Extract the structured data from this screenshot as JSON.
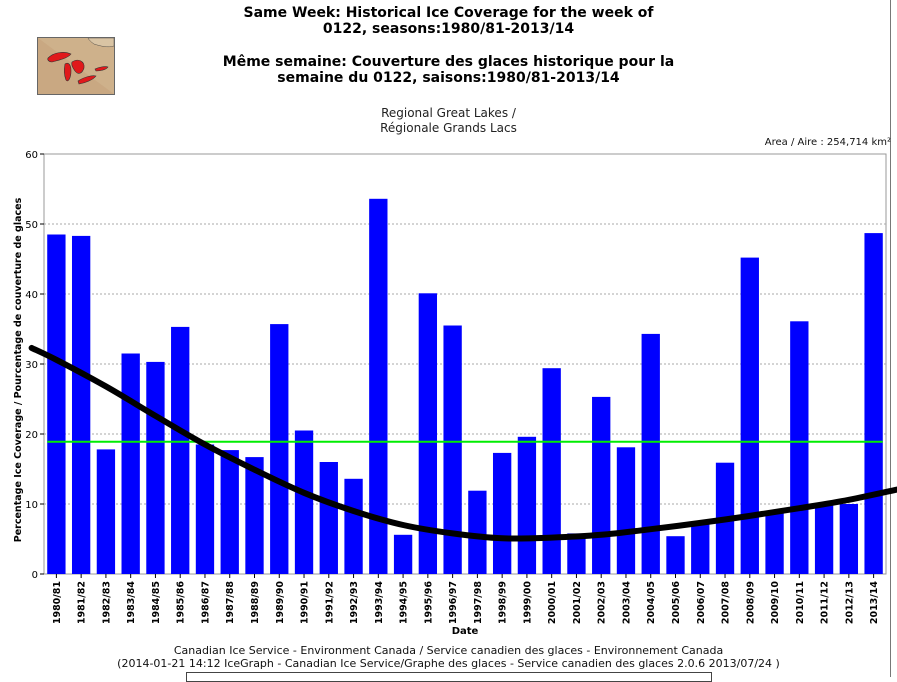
{
  "header": {
    "title_line1": "Same Week: Historical Ice Coverage for the week of",
    "title_line2": "0122, seasons:1980/81-2013/14",
    "title_line3": "Même semaine: Couverture des glaces historique pour la",
    "title_line4": "semaine du 0122, saisons:1980/81-2013/14",
    "region_line1": "Regional Great Lakes /",
    "region_line2": "Régionale Grands Lacs",
    "area": "Area / Aire : 254,714 km²"
  },
  "footer": {
    "line1": "Canadian Ice Service - Environment Canada / Service canadien des glaces - Environnement Canada",
    "line2": "(2014-01-21 14:12 IceGraph - Canadian Ice Service/Graphe des glaces - Service canadien des glaces 2.0.6 2013/07/24 )"
  },
  "colors": {
    "bar": "#0000ff",
    "average_line": "#00ee00",
    "trend_line": "#000000",
    "grid": "#aaaaaa",
    "map_water": "#e0191b",
    "map_land": "#c9a882"
  },
  "chart_data": {
    "type": "bar",
    "title": "Same Week: Historical Ice Coverage for the week of 0122, seasons:1980/81-2013/14",
    "xlabel": "Date",
    "ylabel": "Percentage Ice Coverage / Pourcentage de couverture de glaces",
    "ylim": [
      0,
      60
    ],
    "yticks": [
      0,
      10,
      20,
      30,
      40,
      50,
      60
    ],
    "grid": true,
    "categories": [
      "1980/81",
      "1981/82",
      "1982/83",
      "1983/84",
      "1984/85",
      "1985/86",
      "1986/87",
      "1987/88",
      "1988/89",
      "1989/90",
      "1990/91",
      "1991/92",
      "1992/93",
      "1993/94",
      "1994/95",
      "1995/96",
      "1996/97",
      "1997/98",
      "1998/99",
      "1999/00",
      "2000/01",
      "2001/02",
      "2002/03",
      "2003/04",
      "2004/05",
      "2005/06",
      "2006/07",
      "2007/08",
      "2008/09",
      "2009/10",
      "2010/11",
      "2011/12",
      "2012/13",
      "2013/14"
    ],
    "values": [
      48.5,
      48.3,
      17.8,
      31.5,
      30.3,
      35.3,
      18.5,
      17.7,
      16.7,
      35.7,
      20.5,
      16.0,
      13.6,
      53.6,
      5.6,
      40.1,
      35.5,
      11.9,
      17.3,
      19.6,
      29.4,
      5.8,
      25.3,
      18.1,
      34.3,
      5.4,
      7.5,
      15.9,
      45.2,
      9.0,
      36.1,
      9.8,
      10.0,
      48.7
    ],
    "average": 18.9,
    "trend": [
      {
        "x": -1.0,
        "y": 32.3
      },
      {
        "x": 0,
        "y": 30.6
      },
      {
        "x": 2,
        "y": 26.8
      },
      {
        "x": 4,
        "y": 22.6
      },
      {
        "x": 6,
        "y": 18.5
      },
      {
        "x": 8,
        "y": 14.9
      },
      {
        "x": 10,
        "y": 11.6
      },
      {
        "x": 12,
        "y": 9.0
      },
      {
        "x": 14,
        "y": 7.0
      },
      {
        "x": 16,
        "y": 5.8
      },
      {
        "x": 18,
        "y": 5.1
      },
      {
        "x": 20,
        "y": 5.2
      },
      {
        "x": 22,
        "y": 5.6
      },
      {
        "x": 24,
        "y": 6.4
      },
      {
        "x": 26,
        "y": 7.3
      },
      {
        "x": 28,
        "y": 8.3
      },
      {
        "x": 30,
        "y": 9.4
      },
      {
        "x": 32,
        "y": 10.6
      },
      {
        "x": 34.5,
        "y": 12.5
      }
    ]
  }
}
